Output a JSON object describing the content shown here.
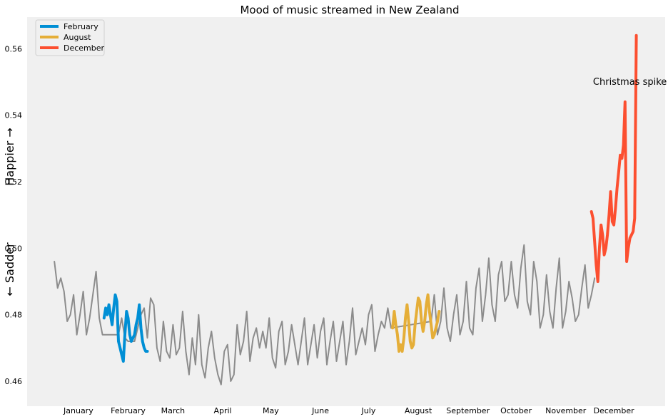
{
  "chart_data": {
    "type": "line",
    "title": "Mood of music streamed in New Zealand",
    "ylabel_top": "Happier →",
    "ylabel_bottom": "← Sadder",
    "ylim": [
      0.4525,
      0.5695
    ],
    "yticks": [
      0.46,
      0.48,
      0.5,
      0.52,
      0.54,
      0.56
    ],
    "ytick_labels": [
      "0.46",
      "0.48",
      "0.50",
      "0.52",
      "0.54",
      "0.56"
    ],
    "xlim": [
      -17,
      381
    ],
    "month_labels": [
      "January",
      "February",
      "March",
      "April",
      "May",
      "June",
      "July",
      "August",
      "September",
      "October",
      "November",
      "December"
    ],
    "month_label_days": [
      15,
      46,
      74,
      105,
      135,
      166,
      196,
      227,
      258,
      288,
      319,
      349
    ],
    "grid": false,
    "legend_position": "top-left",
    "annotation": {
      "text": "Christmas spike",
      "x_day": 336,
      "y": 0.55
    },
    "series": [
      {
        "name": "",
        "color": "#8c8c8c",
        "x_start": 0,
        "x_end": 365,
        "values": [
          [
            0,
            0.496
          ],
          [
            2,
            0.488
          ],
          [
            4,
            0.491
          ],
          [
            6,
            0.487
          ],
          [
            8,
            0.478
          ],
          [
            10,
            0.48
          ],
          [
            12,
            0.486
          ],
          [
            14,
            0.474
          ],
          [
            16,
            0.48
          ],
          [
            18,
            0.487
          ],
          [
            20,
            0.474
          ],
          [
            22,
            0.479
          ],
          [
            24,
            0.486
          ],
          [
            26,
            0.493
          ],
          [
            28,
            0.479
          ],
          [
            30,
            0.474
          ],
          [
            40,
            0.474
          ],
          [
            42,
            0.479
          ],
          [
            44,
            0.473
          ],
          [
            46,
            0.472
          ],
          [
            48,
            0.472
          ],
          [
            50,
            0.472
          ],
          [
            52,
            0.476
          ],
          [
            54,
            0.48
          ],
          [
            56,
            0.482
          ],
          [
            58,
            0.473
          ],
          [
            60,
            0.485
          ],
          [
            62,
            0.483
          ],
          [
            64,
            0.47
          ],
          [
            66,
            0.466
          ],
          [
            68,
            0.478
          ],
          [
            70,
            0.469
          ],
          [
            72,
            0.467
          ],
          [
            74,
            0.477
          ],
          [
            76,
            0.468
          ],
          [
            78,
            0.47
          ],
          [
            80,
            0.481
          ],
          [
            82,
            0.469
          ],
          [
            84,
            0.462
          ],
          [
            86,
            0.473
          ],
          [
            88,
            0.465
          ],
          [
            90,
            0.48
          ],
          [
            92,
            0.465
          ],
          [
            94,
            0.461
          ],
          [
            96,
            0.47
          ],
          [
            98,
            0.475
          ],
          [
            100,
            0.467
          ],
          [
            102,
            0.462
          ],
          [
            104,
            0.459
          ],
          [
            106,
            0.469
          ],
          [
            108,
            0.471
          ],
          [
            110,
            0.46
          ],
          [
            112,
            0.462
          ],
          [
            114,
            0.477
          ],
          [
            116,
            0.468
          ],
          [
            118,
            0.472
          ],
          [
            120,
            0.481
          ],
          [
            122,
            0.466
          ],
          [
            124,
            0.473
          ],
          [
            126,
            0.476
          ],
          [
            128,
            0.47
          ],
          [
            130,
            0.475
          ],
          [
            132,
            0.47
          ],
          [
            134,
            0.479
          ],
          [
            136,
            0.467
          ],
          [
            138,
            0.464
          ],
          [
            140,
            0.475
          ],
          [
            142,
            0.478
          ],
          [
            144,
            0.465
          ],
          [
            146,
            0.469
          ],
          [
            148,
            0.477
          ],
          [
            150,
            0.471
          ],
          [
            152,
            0.465
          ],
          [
            154,
            0.472
          ],
          [
            156,
            0.479
          ],
          [
            158,
            0.465
          ],
          [
            160,
            0.471
          ],
          [
            162,
            0.477
          ],
          [
            164,
            0.467
          ],
          [
            166,
            0.475
          ],
          [
            168,
            0.479
          ],
          [
            170,
            0.465
          ],
          [
            172,
            0.472
          ],
          [
            174,
            0.478
          ],
          [
            176,
            0.466
          ],
          [
            178,
            0.472
          ],
          [
            180,
            0.478
          ],
          [
            182,
            0.465
          ],
          [
            184,
            0.472
          ],
          [
            186,
            0.482
          ],
          [
            188,
            0.468
          ],
          [
            190,
            0.472
          ],
          [
            192,
            0.476
          ],
          [
            194,
            0.471
          ],
          [
            196,
            0.48
          ],
          [
            198,
            0.483
          ],
          [
            200,
            0.469
          ],
          [
            202,
            0.474
          ],
          [
            204,
            0.478
          ],
          [
            206,
            0.476
          ],
          [
            208,
            0.482
          ],
          [
            210,
            0.476
          ],
          [
            235,
            0.478
          ],
          [
            237,
            0.486
          ],
          [
            239,
            0.474
          ],
          [
            241,
            0.478
          ],
          [
            243,
            0.488
          ],
          [
            245,
            0.476
          ],
          [
            247,
            0.472
          ],
          [
            249,
            0.48
          ],
          [
            251,
            0.486
          ],
          [
            253,
            0.474
          ],
          [
            255,
            0.478
          ],
          [
            257,
            0.49
          ],
          [
            259,
            0.476
          ],
          [
            261,
            0.474
          ],
          [
            263,
            0.488
          ],
          [
            265,
            0.494
          ],
          [
            267,
            0.478
          ],
          [
            269,
            0.486
          ],
          [
            271,
            0.497
          ],
          [
            273,
            0.483
          ],
          [
            275,
            0.478
          ],
          [
            277,
            0.492
          ],
          [
            279,
            0.496
          ],
          [
            281,
            0.484
          ],
          [
            283,
            0.486
          ],
          [
            285,
            0.496
          ],
          [
            287,
            0.486
          ],
          [
            289,
            0.482
          ],
          [
            291,
            0.494
          ],
          [
            293,
            0.501
          ],
          [
            295,
            0.484
          ],
          [
            297,
            0.48
          ],
          [
            299,
            0.496
          ],
          [
            301,
            0.49
          ],
          [
            303,
            0.476
          ],
          [
            305,
            0.48
          ],
          [
            307,
            0.492
          ],
          [
            309,
            0.481
          ],
          [
            311,
            0.476
          ],
          [
            313,
            0.488
          ],
          [
            315,
            0.497
          ],
          [
            317,
            0.476
          ],
          [
            319,
            0.481
          ],
          [
            321,
            0.49
          ],
          [
            323,
            0.485
          ],
          [
            325,
            0.478
          ],
          [
            327,
            0.48
          ],
          [
            329,
            0.488
          ],
          [
            331,
            0.495
          ],
          [
            333,
            0.482
          ],
          [
            335,
            0.486
          ],
          [
            337,
            0.491
          ]
        ]
      },
      {
        "name": "February",
        "color": "#008fd5",
        "values": [
          [
            31,
            0.479
          ],
          [
            32,
            0.482
          ],
          [
            33,
            0.48
          ],
          [
            34,
            0.483
          ],
          [
            35,
            0.48
          ],
          [
            36,
            0.477
          ],
          [
            37,
            0.482
          ],
          [
            38,
            0.486
          ],
          [
            39,
            0.484
          ],
          [
            40,
            0.472
          ],
          [
            41,
            0.47
          ],
          [
            42,
            0.468
          ],
          [
            43,
            0.466
          ],
          [
            44,
            0.474
          ],
          [
            45,
            0.481
          ],
          [
            46,
            0.479
          ],
          [
            47,
            0.474
          ],
          [
            48,
            0.472
          ],
          [
            49,
            0.473
          ],
          [
            50,
            0.474
          ],
          [
            51,
            0.477
          ],
          [
            52,
            0.479
          ],
          [
            53,
            0.483
          ],
          [
            54,
            0.476
          ],
          [
            55,
            0.472
          ],
          [
            56,
            0.47
          ],
          [
            57,
            0.469
          ],
          [
            58,
            0.469
          ]
        ]
      },
      {
        "name": "August",
        "color": "#e5ae38",
        "values": [
          [
            211,
            0.476
          ],
          [
            212,
            0.481
          ],
          [
            213,
            0.477
          ],
          [
            214,
            0.474
          ],
          [
            215,
            0.469
          ],
          [
            216,
            0.471
          ],
          [
            217,
            0.469
          ],
          [
            218,
            0.473
          ],
          [
            219,
            0.479
          ],
          [
            220,
            0.483
          ],
          [
            221,
            0.478
          ],
          [
            222,
            0.472
          ],
          [
            223,
            0.47
          ],
          [
            224,
            0.471
          ],
          [
            225,
            0.477
          ],
          [
            226,
            0.481
          ],
          [
            227,
            0.485
          ],
          [
            228,
            0.484
          ],
          [
            229,
            0.478
          ],
          [
            230,
            0.475
          ],
          [
            231,
            0.478
          ],
          [
            232,
            0.483
          ],
          [
            233,
            0.486
          ],
          [
            234,
            0.481
          ],
          [
            235,
            0.477
          ],
          [
            236,
            0.473
          ],
          [
            237,
            0.474
          ],
          [
            238,
            0.476
          ],
          [
            239,
            0.478
          ],
          [
            240,
            0.481
          ]
        ]
      },
      {
        "name": "December",
        "color": "#fc4f30",
        "values": [
          [
            335,
            0.511
          ],
          [
            336,
            0.509
          ],
          [
            337,
            0.502
          ],
          [
            338,
            0.495
          ],
          [
            339,
            0.49
          ],
          [
            340,
            0.5
          ],
          [
            341,
            0.507
          ],
          [
            342,
            0.504
          ],
          [
            343,
            0.498
          ],
          [
            344,
            0.5
          ],
          [
            345,
            0.504
          ],
          [
            346,
            0.51
          ],
          [
            347,
            0.517
          ],
          [
            348,
            0.508
          ],
          [
            349,
            0.507
          ],
          [
            350,
            0.512
          ],
          [
            351,
            0.518
          ],
          [
            352,
            0.523
          ],
          [
            353,
            0.528
          ],
          [
            354,
            0.527
          ],
          [
            355,
            0.531
          ],
          [
            356,
            0.544
          ],
          [
            357,
            0.496
          ],
          [
            358,
            0.5
          ],
          [
            359,
            0.503
          ],
          [
            360,
            0.504
          ],
          [
            361,
            0.505
          ],
          [
            362,
            0.509
          ],
          [
            363,
            0.564
          ]
        ]
      }
    ]
  }
}
